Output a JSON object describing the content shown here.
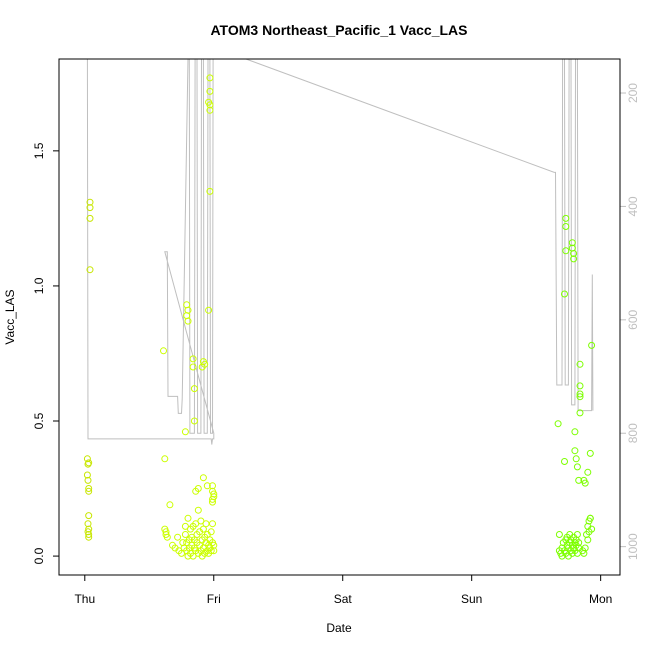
{
  "chart_data": {
    "type": "scatter",
    "title": "ATOM3 Northeast_Pacific_1 Vacc_LAS",
    "xlabel": "Date",
    "ylabel": "Vacc_LAS",
    "x_ticks": [
      {
        "label": "Thu",
        "value": 0
      },
      {
        "label": "Fri",
        "value": 1
      },
      {
        "label": "Sat",
        "value": 2
      },
      {
        "label": "Sun",
        "value": 3
      },
      {
        "label": "Mon",
        "value": 4
      }
    ],
    "xlim": [
      -0.2,
      4.15
    ],
    "ylim": [
      -0.07,
      1.84
    ],
    "y_ticks": [
      0.0,
      0.5,
      1.0,
      1.5
    ],
    "y_tick_labels": [
      "0.0",
      "0.5",
      "1.0",
      "1.5"
    ],
    "secondary_axis": {
      "label": "",
      "reversed": true,
      "range": [
        1050,
        140
      ],
      "ticks": [
        200,
        400,
        600,
        800,
        1000
      ],
      "tick_labels": [
        "200",
        "400",
        "600",
        "800",
        "1000"
      ],
      "color": "#bfbfbf"
    },
    "series": [
      {
        "kind": "points",
        "points": [
          [
            0.02,
            0.36
          ],
          [
            0.025,
            0.34
          ],
          [
            0.03,
            0.345
          ],
          [
            0.02,
            0.3
          ],
          [
            0.025,
            0.28
          ],
          [
            0.03,
            0.25
          ],
          [
            0.03,
            0.24
          ],
          [
            0.03,
            0.15
          ],
          [
            0.025,
            0.12
          ],
          [
            0.03,
            0.1
          ],
          [
            0.025,
            0.09
          ],
          [
            0.03,
            0.08
          ],
          [
            0.03,
            0.07
          ],
          [
            0.04,
            1.31
          ],
          [
            0.04,
            1.29
          ],
          [
            0.04,
            1.25
          ],
          [
            0.04,
            1.06
          ],
          [
            0.61,
            0.76
          ],
          [
            0.62,
            0.36
          ],
          [
            0.62,
            0.1
          ],
          [
            0.63,
            0.09
          ],
          [
            0.63,
            0.08
          ],
          [
            0.64,
            0.07
          ],
          [
            0.66,
            0.19
          ],
          [
            0.68,
            0.04
          ],
          [
            0.7,
            0.03
          ],
          [
            0.72,
            0.07
          ],
          [
            0.73,
            0.02
          ],
          [
            0.75,
            0.01
          ],
          [
            0.76,
            0.05
          ],
          [
            0.77,
            0.03
          ],
          [
            0.78,
            0.08
          ],
          [
            0.78,
            0.11
          ],
          [
            0.79,
            0.05
          ],
          [
            0.79,
            0.02
          ],
          [
            0.8,
            0.0
          ],
          [
            0.8,
            0.14
          ],
          [
            0.81,
            0.06
          ],
          [
            0.81,
            0.03
          ],
          [
            0.82,
            0.1
          ],
          [
            0.82,
            0.01
          ],
          [
            0.83,
            0.07
          ],
          [
            0.83,
            0.04
          ],
          [
            0.84,
            0.11
          ],
          [
            0.84,
            0.0
          ],
          [
            0.85,
            0.06
          ],
          [
            0.85,
            0.03
          ],
          [
            0.86,
            0.12
          ],
          [
            0.86,
            0.02
          ],
          [
            0.87,
            0.08
          ],
          [
            0.87,
            0.05
          ],
          [
            0.88,
            0.01
          ],
          [
            0.88,
            0.17
          ],
          [
            0.89,
            0.09
          ],
          [
            0.89,
            0.04
          ],
          [
            0.9,
            0.02
          ],
          [
            0.9,
            0.13
          ],
          [
            0.91,
            0.06
          ],
          [
            0.91,
            0.0
          ],
          [
            0.92,
            0.1
          ],
          [
            0.92,
            0.03
          ],
          [
            0.93,
            0.07
          ],
          [
            0.93,
            0.01
          ],
          [
            0.94,
            0.05
          ],
          [
            0.94,
            0.12
          ],
          [
            0.95,
            0.02
          ],
          [
            0.95,
            0.08
          ],
          [
            0.96,
            0.04
          ],
          [
            0.96,
            0.01
          ],
          [
            0.97,
            0.06
          ],
          [
            0.97,
            0.03
          ],
          [
            0.98,
            0.09
          ],
          [
            0.98,
            0.02
          ],
          [
            0.99,
            0.05
          ],
          [
            0.99,
            0.12
          ],
          [
            1.0,
            0.04
          ],
          [
            1.0,
            0.02
          ],
          [
            0.79,
            0.93
          ],
          [
            0.8,
            0.91
          ],
          [
            0.79,
            0.89
          ],
          [
            0.8,
            0.87
          ],
          [
            0.78,
            0.46
          ],
          [
            0.84,
            0.73
          ],
          [
            0.84,
            0.7
          ],
          [
            0.85,
            0.62
          ],
          [
            0.85,
            0.5
          ],
          [
            0.86,
            0.24
          ],
          [
            0.88,
            0.25
          ],
          [
            0.92,
            0.29
          ],
          [
            0.95,
            0.26
          ],
          [
            0.91,
            0.7
          ],
          [
            0.92,
            0.72
          ],
          [
            0.93,
            0.71
          ],
          [
            0.96,
            0.91
          ],
          [
            0.97,
            1.77
          ],
          [
            0.97,
            1.72
          ],
          [
            0.96,
            1.68
          ],
          [
            0.97,
            1.67
          ],
          [
            0.97,
            1.65
          ],
          [
            0.97,
            1.35
          ],
          [
            0.99,
            0.26
          ],
          [
            0.99,
            0.24
          ],
          [
            1.0,
            0.23
          ],
          [
            1.0,
            0.22
          ],
          [
            0.99,
            0.21
          ],
          [
            0.99,
            0.2
          ],
          [
            3.67,
            0.49
          ],
          [
            3.68,
            0.08
          ],
          [
            3.68,
            0.02
          ],
          [
            3.69,
            0.01
          ],
          [
            3.7,
            0.03
          ],
          [
            3.7,
            0.0
          ],
          [
            3.71,
            0.05
          ],
          [
            3.72,
            0.02
          ],
          [
            3.72,
            0.35
          ],
          [
            3.73,
            0.06
          ],
          [
            3.73,
            0.01
          ],
          [
            3.74,
            0.04
          ],
          [
            3.74,
            0.07
          ],
          [
            3.75,
            0.03
          ],
          [
            3.75,
            0.0
          ],
          [
            3.76,
            0.05
          ],
          [
            3.76,
            0.08
          ],
          [
            3.77,
            0.02
          ],
          [
            3.77,
            0.06
          ],
          [
            3.78,
            0.04
          ],
          [
            3.78,
            0.01
          ],
          [
            3.79,
            0.07
          ],
          [
            3.79,
            0.03
          ],
          [
            3.8,
            0.05
          ],
          [
            3.8,
            0.02
          ],
          [
            3.81,
            0.06
          ],
          [
            3.81,
            0.04
          ],
          [
            3.82,
            0.08
          ],
          [
            3.82,
            0.01
          ],
          [
            3.83,
            0.05
          ],
          [
            3.83,
            0.03
          ],
          [
            3.73,
            1.25
          ],
          [
            3.73,
            1.22
          ],
          [
            3.73,
            1.13
          ],
          [
            3.72,
            0.97
          ],
          [
            3.78,
            1.16
          ],
          [
            3.78,
            1.14
          ],
          [
            3.79,
            1.12
          ],
          [
            3.79,
            1.1
          ],
          [
            3.8,
            0.46
          ],
          [
            3.8,
            0.39
          ],
          [
            3.81,
            0.36
          ],
          [
            3.82,
            0.33
          ],
          [
            3.83,
            0.28
          ],
          [
            3.84,
            0.71
          ],
          [
            3.84,
            0.63
          ],
          [
            3.84,
            0.6
          ],
          [
            3.84,
            0.59
          ],
          [
            3.84,
            0.53
          ],
          [
            3.87,
            0.28
          ],
          [
            3.88,
            0.27
          ],
          [
            3.9,
            0.31
          ],
          [
            3.92,
            0.38
          ],
          [
            3.93,
            0.78
          ],
          [
            3.86,
            0.02
          ],
          [
            3.87,
            0.01
          ],
          [
            3.88,
            0.03
          ],
          [
            3.89,
            0.08
          ],
          [
            3.9,
            0.11
          ],
          [
            3.91,
            0.13
          ],
          [
            3.92,
            0.14
          ],
          [
            3.9,
            0.06
          ],
          [
            3.91,
            0.09
          ],
          [
            3.92,
            0.14
          ],
          [
            3.93,
            0.1
          ]
        ]
      },
      {
        "kind": "line",
        "axis": "secondary",
        "color": "#bfbfbf",
        "points": [
          [
            0.0,
            140
          ],
          [
            0.02,
            140
          ],
          [
            0.025,
            810
          ],
          [
            0.98,
            810
          ],
          [
            0.985,
            820
          ],
          [
            0.99,
            810
          ],
          [
            1.0,
            810
          ],
          [
            1.0,
            800
          ],
          [
            0.62,
            480
          ],
          [
            0.64,
            480
          ],
          [
            0.645,
            735
          ],
          [
            0.72,
            735
          ],
          [
            0.725,
            765
          ],
          [
            0.75,
            765
          ],
          [
            0.755,
            740
          ],
          [
            0.8,
            140
          ],
          [
            0.81,
            140
          ],
          [
            0.815,
            800
          ],
          [
            0.85,
            800
          ],
          [
            0.855,
            140
          ],
          [
            0.87,
            140
          ],
          [
            0.875,
            800
          ],
          [
            0.9,
            800
          ],
          [
            0.905,
            140
          ],
          [
            0.92,
            140
          ],
          [
            0.925,
            800
          ],
          [
            0.95,
            800
          ],
          [
            0.955,
            140
          ],
          [
            0.97,
            140
          ],
          [
            0.975,
            800
          ],
          [
            0.99,
            800
          ],
          [
            0.995,
            140
          ],
          [
            1.0,
            140
          ],
          [
            1.25,
            140
          ],
          [
            3.64,
            340
          ],
          [
            3.65,
            340
          ],
          [
            3.66,
            715
          ],
          [
            3.7,
            715
          ],
          [
            3.705,
            140
          ],
          [
            3.72,
            140
          ],
          [
            3.725,
            715
          ],
          [
            3.75,
            715
          ],
          [
            3.755,
            140
          ],
          [
            3.77,
            140
          ],
          [
            3.775,
            750
          ],
          [
            3.8,
            750
          ],
          [
            3.805,
            140
          ],
          [
            3.82,
            140
          ],
          [
            3.825,
            760
          ],
          [
            3.85,
            760
          ],
          [
            3.855,
            760
          ],
          [
            3.93,
            760
          ],
          [
            3.935,
            520
          ],
          [
            3.94,
            760
          ]
        ]
      }
    ],
    "grid": false
  }
}
